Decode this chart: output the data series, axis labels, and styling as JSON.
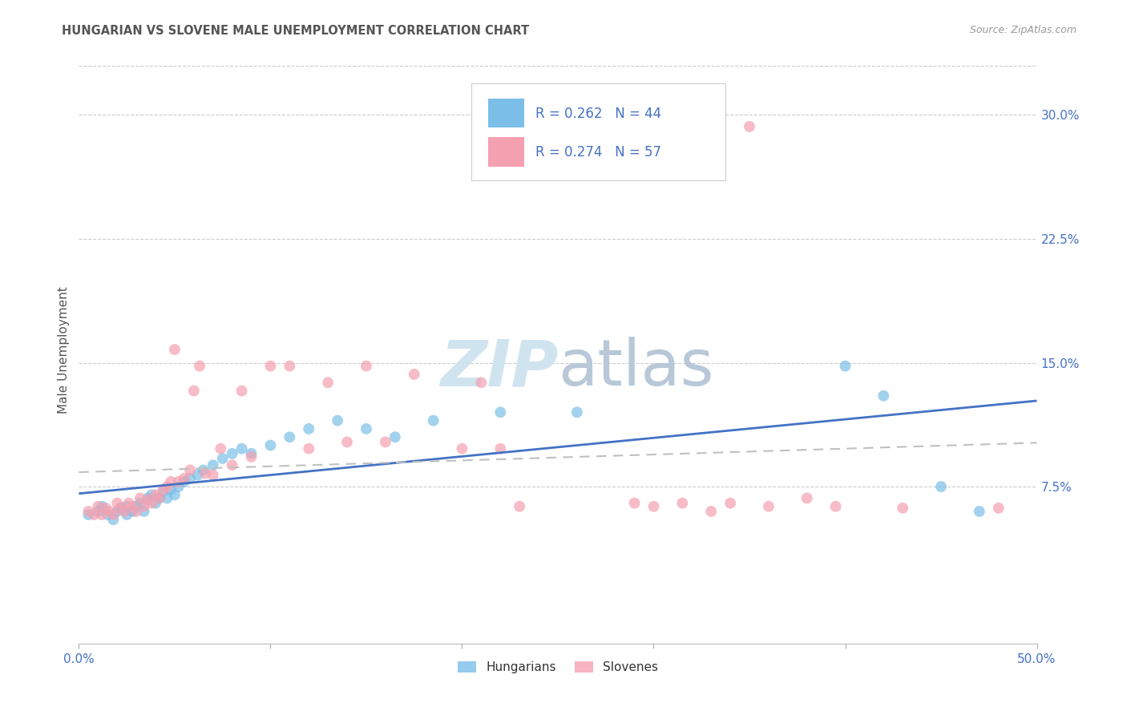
{
  "title": "HUNGARIAN VS SLOVENE MALE UNEMPLOYMENT CORRELATION CHART",
  "source": "Source: ZipAtlas.com",
  "ylabel": "Male Unemployment",
  "xlim": [
    0.0,
    0.5
  ],
  "ylim": [
    -0.02,
    0.335
  ],
  "xticks": [
    0.0,
    0.1,
    0.2,
    0.3,
    0.4,
    0.5
  ],
  "xticklabels_sparse": [
    "0.0%",
    "",
    "",
    "",
    "",
    "50.0%"
  ],
  "yticks": [
    0.0,
    0.075,
    0.15,
    0.225,
    0.3
  ],
  "yticklabels": [
    "",
    "7.5%",
    "15.0%",
    "22.5%",
    "30.0%"
  ],
  "legend_r_hungarian": "R = 0.262",
  "legend_n_hungarian": "N = 44",
  "legend_r_slovene": "R = 0.274",
  "legend_n_slovene": "N = 57",
  "hungarian_color": "#7bbfe8",
  "slovene_color": "#f5a0b0",
  "trend_hungarian_color": "#4472c4",
  "trend_slovene_color": "#d05070",
  "trend_slovene_dash_color": "#c0c0c0",
  "watermark_color": "#d0e4f0",
  "background_color": "#ffffff",
  "grid_color": "#cccccc",
  "tick_color": "#4472c4",
  "title_color": "#555555",
  "hungarian_x": [
    0.005,
    0.01,
    0.012,
    0.015,
    0.018,
    0.02,
    0.022,
    0.025,
    0.025,
    0.028,
    0.03,
    0.032,
    0.034,
    0.036,
    0.038,
    0.04,
    0.042,
    0.044,
    0.046,
    0.048,
    0.05,
    0.052,
    0.055,
    0.058,
    0.062,
    0.065,
    0.07,
    0.075,
    0.08,
    0.085,
    0.09,
    0.1,
    0.11,
    0.12,
    0.135,
    0.15,
    0.165,
    0.185,
    0.22,
    0.26,
    0.4,
    0.42,
    0.45,
    0.47
  ],
  "hungarian_y": [
    0.058,
    0.06,
    0.063,
    0.058,
    0.055,
    0.06,
    0.062,
    0.058,
    0.063,
    0.06,
    0.063,
    0.065,
    0.06,
    0.068,
    0.07,
    0.065,
    0.068,
    0.072,
    0.068,
    0.073,
    0.07,
    0.075,
    0.078,
    0.08,
    0.082,
    0.085,
    0.088,
    0.092,
    0.095,
    0.098,
    0.095,
    0.1,
    0.105,
    0.11,
    0.115,
    0.11,
    0.105,
    0.115,
    0.12,
    0.12,
    0.148,
    0.13,
    0.075,
    0.06
  ],
  "slovene_x": [
    0.005,
    0.008,
    0.01,
    0.012,
    0.014,
    0.016,
    0.018,
    0.02,
    0.022,
    0.024,
    0.026,
    0.028,
    0.03,
    0.032,
    0.034,
    0.036,
    0.038,
    0.04,
    0.042,
    0.044,
    0.046,
    0.048,
    0.05,
    0.052,
    0.055,
    0.058,
    0.06,
    0.063,
    0.066,
    0.07,
    0.074,
    0.08,
    0.085,
    0.09,
    0.1,
    0.11,
    0.12,
    0.13,
    0.14,
    0.15,
    0.16,
    0.175,
    0.2,
    0.21,
    0.22,
    0.23,
    0.29,
    0.3,
    0.315,
    0.33,
    0.34,
    0.35,
    0.36,
    0.38,
    0.395,
    0.43,
    0.48
  ],
  "slovene_y": [
    0.06,
    0.058,
    0.063,
    0.058,
    0.062,
    0.06,
    0.058,
    0.065,
    0.062,
    0.06,
    0.065,
    0.063,
    0.06,
    0.068,
    0.063,
    0.067,
    0.065,
    0.07,
    0.068,
    0.073,
    0.075,
    0.078,
    0.158,
    0.078,
    0.08,
    0.085,
    0.133,
    0.148,
    0.083,
    0.082,
    0.098,
    0.088,
    0.133,
    0.093,
    0.148,
    0.148,
    0.098,
    0.138,
    0.102,
    0.148,
    0.102,
    0.143,
    0.098,
    0.138,
    0.098,
    0.063,
    0.065,
    0.063,
    0.065,
    0.06,
    0.065,
    0.293,
    0.063,
    0.068,
    0.063,
    0.062,
    0.062
  ]
}
